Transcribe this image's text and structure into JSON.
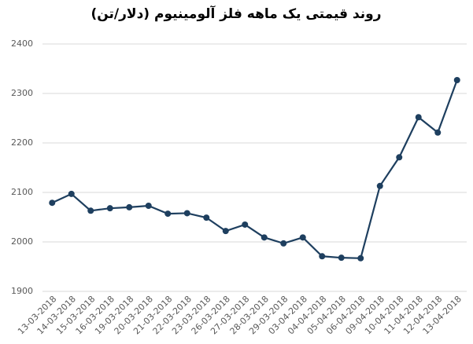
{
  "chart_data": {
    "type": "line",
    "title": "روند قیمتی یک ماهه فلز آلومینیوم (دلار/تن)",
    "categories": [
      "13-03-2018",
      "14-03-2018",
      "15-03-2018",
      "16-03-2018",
      "19-03-2018",
      "20-03-2018",
      "21-03-2018",
      "22-03-2018",
      "23-03-2018",
      "26-03-2018",
      "27-03-2018",
      "28-03-2018",
      "29-03-2018",
      "03-04-2018",
      "04-04-2018",
      "05-04-2018",
      "06-04-2018",
      "09-04-2018",
      "10-04-2018",
      "11-04-2018",
      "12-04-2018",
      "13-04-2018"
    ],
    "values": [
      2079,
      2097,
      2063,
      2068,
      2070,
      2073,
      2057,
      2058,
      2049,
      2022,
      2035,
      2009,
      1997,
      2009,
      1971,
      1968,
      1967,
      2113,
      2171,
      2252,
      2221,
      2327
    ],
    "color": "#1e3f5f",
    "ylim": [
      1900,
      2400
    ],
    "yticks": [
      1900,
      2000,
      2100,
      2200,
      2300,
      2400
    ],
    "grid": true
  }
}
